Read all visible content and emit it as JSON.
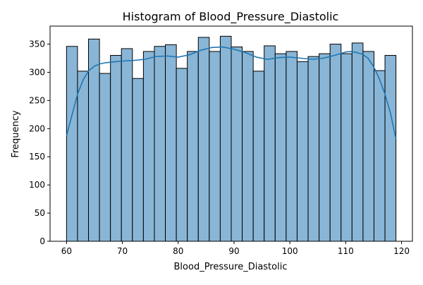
{
  "chart_data": {
    "type": "bar",
    "title": "Histogram of Blood_Pressure_Diastolic",
    "xlabel": "Blood_Pressure_Diastolic",
    "ylabel": "Frequency",
    "xlim": [
      57.05,
      121.95
    ],
    "ylim": [
      0,
      382
    ],
    "xticks": [
      60,
      70,
      80,
      90,
      100,
      110,
      120
    ],
    "yticks": [
      0,
      50,
      100,
      150,
      200,
      250,
      300,
      350
    ],
    "bin_start": 60,
    "bin_width": 1.9667,
    "values": [
      346,
      302,
      359,
      298,
      330,
      342,
      289,
      337,
      346,
      349,
      307,
      337,
      362,
      337,
      364,
      345,
      337,
      302,
      347,
      333,
      337,
      319,
      328,
      333,
      350,
      333,
      352,
      337,
      303,
      330
    ],
    "kde": {
      "x": [
        60,
        61,
        62,
        63,
        64,
        65,
        66,
        67,
        68,
        69,
        70,
        72,
        74,
        76,
        78,
        80,
        82,
        84,
        86,
        88,
        90,
        92,
        94,
        96,
        98,
        100,
        102,
        104,
        106,
        108,
        110,
        111,
        112,
        113,
        114,
        115,
        116,
        117,
        118,
        119
      ],
      "y": [
        187,
        225,
        262,
        287,
        303,
        311,
        315,
        317,
        318,
        319,
        320,
        321,
        323,
        328,
        329,
        327,
        331,
        339,
        344,
        345,
        341,
        335,
        327,
        323,
        326,
        327,
        325,
        323,
        325,
        330,
        336,
        337,
        335,
        332,
        325,
        310,
        289,
        262,
        228,
        182
      ]
    },
    "bar_color": "#89b6d6",
    "bar_edge_color": "#000000",
    "line_color": "#1f77b4",
    "grid": false,
    "legend": "none"
  }
}
